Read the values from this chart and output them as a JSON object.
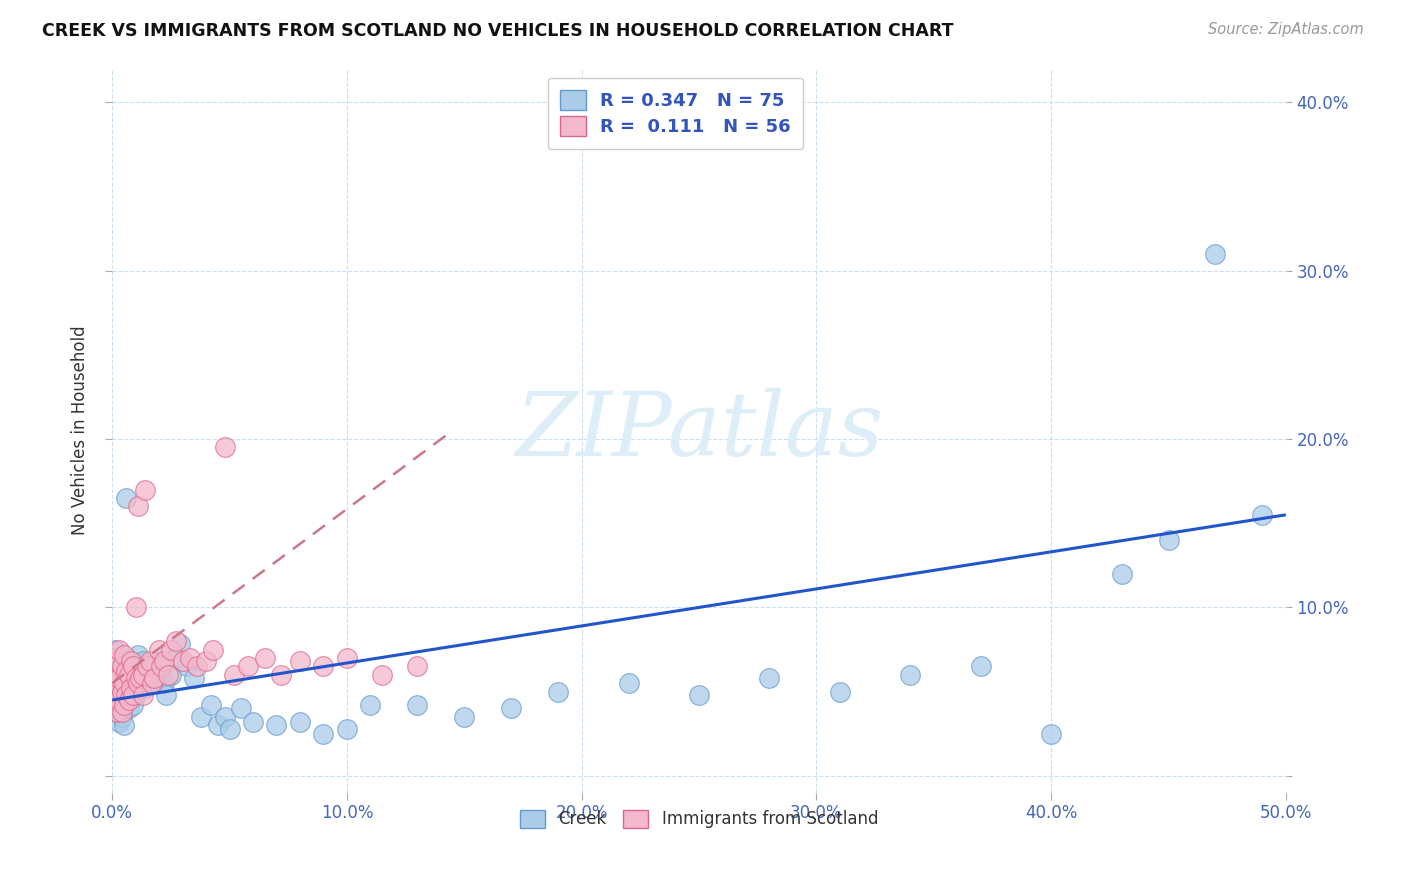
{
  "title": "CREEK VS IMMIGRANTS FROM SCOTLAND NO VEHICLES IN HOUSEHOLD CORRELATION CHART",
  "source": "Source: ZipAtlas.com",
  "ylabel": "No Vehicles in Household",
  "xlim": [
    0.0,
    0.5
  ],
  "ylim": [
    -0.01,
    0.42
  ],
  "xticks": [
    0.0,
    0.1,
    0.2,
    0.3,
    0.4,
    0.5
  ],
  "yticks": [
    0.0,
    0.1,
    0.2,
    0.3,
    0.4
  ],
  "xtick_labels": [
    "0.0%",
    "10.0%",
    "20.0%",
    "30.0%",
    "40.0%",
    "50.0%"
  ],
  "ytick_labels_right": [
    "",
    "10.0%",
    "20.0%",
    "30.0%",
    "40.0%"
  ],
  "creek_R": 0.347,
  "creek_N": 75,
  "scotland_R": 0.111,
  "scotland_N": 56,
  "creek_color": "#aacce8",
  "creek_edge_color": "#6699cc",
  "scotland_color": "#f4b8cc",
  "scotland_edge_color": "#dd6688",
  "trendline_creek_color": "#2255cc",
  "trendline_scotland_color": "#cc7788",
  "watermark_color": "#ddeef8",
  "creek_x": [
    0.001,
    0.001,
    0.001,
    0.002,
    0.002,
    0.002,
    0.002,
    0.003,
    0.003,
    0.003,
    0.003,
    0.003,
    0.004,
    0.004,
    0.004,
    0.004,
    0.005,
    0.005,
    0.005,
    0.005,
    0.006,
    0.006,
    0.006,
    0.007,
    0.007,
    0.008,
    0.008,
    0.009,
    0.009,
    0.01,
    0.01,
    0.011,
    0.012,
    0.013,
    0.014,
    0.015,
    0.016,
    0.017,
    0.018,
    0.02,
    0.021,
    0.022,
    0.023,
    0.025,
    0.027,
    0.029,
    0.032,
    0.035,
    0.038,
    0.042,
    0.045,
    0.048,
    0.05,
    0.055,
    0.06,
    0.07,
    0.08,
    0.09,
    0.1,
    0.11,
    0.13,
    0.15,
    0.17,
    0.19,
    0.22,
    0.25,
    0.28,
    0.31,
    0.34,
    0.37,
    0.4,
    0.43,
    0.45,
    0.47,
    0.49
  ],
  "creek_y": [
    0.075,
    0.06,
    0.05,
    0.068,
    0.055,
    0.045,
    0.038,
    0.065,
    0.058,
    0.048,
    0.04,
    0.032,
    0.055,
    0.07,
    0.048,
    0.035,
    0.06,
    0.052,
    0.042,
    0.03,
    0.165,
    0.058,
    0.045,
    0.052,
    0.04,
    0.068,
    0.048,
    0.058,
    0.042,
    0.065,
    0.048,
    0.072,
    0.06,
    0.068,
    0.052,
    0.06,
    0.065,
    0.058,
    0.055,
    0.06,
    0.068,
    0.055,
    0.048,
    0.06,
    0.07,
    0.078,
    0.065,
    0.058,
    0.035,
    0.042,
    0.03,
    0.035,
    0.028,
    0.04,
    0.032,
    0.03,
    0.032,
    0.025,
    0.028,
    0.042,
    0.042,
    0.035,
    0.04,
    0.05,
    0.055,
    0.048,
    0.058,
    0.05,
    0.06,
    0.065,
    0.025,
    0.12,
    0.14,
    0.31,
    0.155
  ],
  "scotland_x": [
    0.001,
    0.001,
    0.001,
    0.002,
    0.002,
    0.002,
    0.003,
    0.003,
    0.003,
    0.004,
    0.004,
    0.004,
    0.005,
    0.005,
    0.005,
    0.006,
    0.006,
    0.007,
    0.007,
    0.008,
    0.008,
    0.009,
    0.009,
    0.01,
    0.01,
    0.011,
    0.011,
    0.012,
    0.013,
    0.013,
    0.014,
    0.015,
    0.016,
    0.017,
    0.018,
    0.02,
    0.021,
    0.022,
    0.024,
    0.025,
    0.027,
    0.03,
    0.033,
    0.036,
    0.04,
    0.043,
    0.048,
    0.052,
    0.058,
    0.065,
    0.072,
    0.08,
    0.09,
    0.1,
    0.115,
    0.13
  ],
  "scotland_y": [
    0.07,
    0.058,
    0.045,
    0.068,
    0.055,
    0.038,
    0.075,
    0.058,
    0.045,
    0.065,
    0.05,
    0.038,
    0.072,
    0.055,
    0.042,
    0.062,
    0.048,
    0.06,
    0.045,
    0.068,
    0.052,
    0.065,
    0.048,
    0.1,
    0.058,
    0.16,
    0.055,
    0.058,
    0.06,
    0.048,
    0.17,
    0.065,
    0.068,
    0.055,
    0.058,
    0.075,
    0.065,
    0.068,
    0.06,
    0.075,
    0.08,
    0.068,
    0.07,
    0.065,
    0.068,
    0.075,
    0.195,
    0.06,
    0.065,
    0.07,
    0.06,
    0.068,
    0.065,
    0.07,
    0.06,
    0.065
  ],
  "creek_trendline_x0": 0.0,
  "creek_trendline_x1": 0.5,
  "creek_trendline_y0": 0.045,
  "creek_trendline_y1": 0.155,
  "scotland_trendline_x0": 0.0,
  "scotland_trendline_x1": 0.145,
  "scotland_trendline_y0": 0.055,
  "scotland_trendline_y1": 0.205
}
